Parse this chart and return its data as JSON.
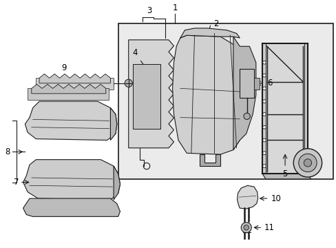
{
  "bg_color": "#ffffff",
  "box_bg": "#e8e8e8",
  "lc": "#1a1a1a",
  "lw": 0.8,
  "label_fs": 8.5
}
